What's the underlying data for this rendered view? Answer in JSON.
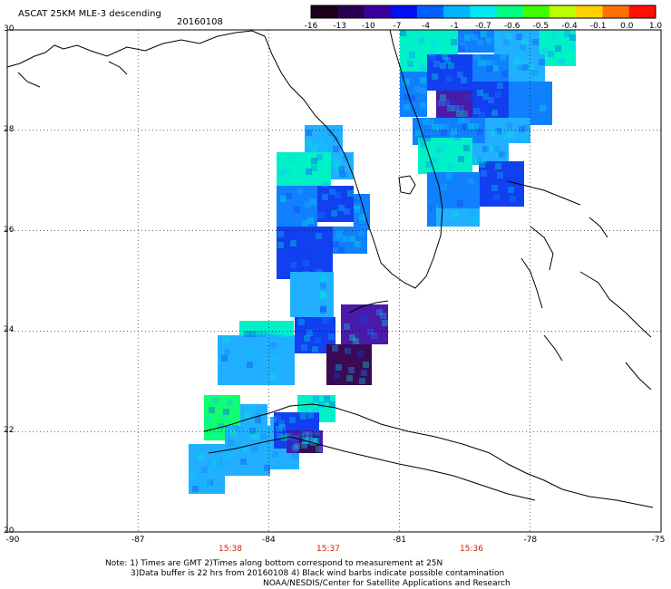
{
  "header": {
    "title": "ASCAT 25KM MLE-3 descending",
    "date": "20160108"
  },
  "colorbar": {
    "ticks": [
      "-16",
      "-13",
      "-10",
      "-7",
      "-4",
      "-1",
      "-0.7",
      "-0.6",
      "-0.5",
      "-0.4",
      "-0.1",
      "0.0",
      "1.0"
    ],
    "colors": [
      "#1a001a",
      "#2a0050",
      "#3c00a0",
      "#0010f0",
      "#0060ff",
      "#00b4ff",
      "#00e8f0",
      "#00ff80",
      "#40ff00",
      "#c0ff00",
      "#ffd000",
      "#ff7000",
      "#ff1000"
    ]
  },
  "axes": {
    "lat_labels": [
      "30",
      "28",
      "26",
      "24",
      "22",
      "20"
    ],
    "lon_labels": [
      "-90",
      "-87",
      "-84",
      "-81",
      "-78",
      "-75"
    ],
    "lon_range": [
      -90,
      -75
    ],
    "lat_range": [
      20,
      30
    ],
    "grid": "dotted"
  },
  "times": [
    "15:38",
    "15:37",
    "15:36"
  ],
  "footer": {
    "line1": "Note: 1) Times are GMT 2)Times along bottom correspond to measurement at 25N",
    "line2": "3)Data buffer is 22 hrs from 20160108 4) Black wind barbs indicate possible contamination",
    "line3": "NOAA/NESDIS/Center for Satellite Applications and Research"
  },
  "palette": {
    "dark_purple": "#3a0a55",
    "purple": "#4a1aa8",
    "blue": "#1040f0",
    "mid_blue": "#1080ff",
    "light_blue": "#20b0ff",
    "cyan": "#00d8f0",
    "aqua": "#00f0c8",
    "green": "#10ff70",
    "time_color": "#cc2200"
  }
}
